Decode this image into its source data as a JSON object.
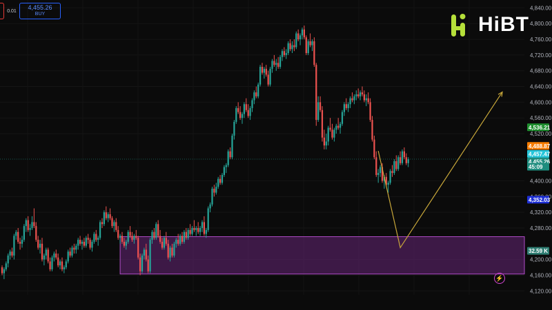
{
  "trade_panel": {
    "spread": "0.01",
    "buy_price": "4,455.26",
    "buy_label": "BUY"
  },
  "logo": {
    "text": "HiBT"
  },
  "colors": {
    "up": "#26a69a",
    "down": "#ef5350",
    "zone": "#7b2a8f",
    "trend": "#c9a83a"
  },
  "chart_data": {
    "type": "candlestick",
    "y_axis": {
      "min": 4110,
      "max": 4860,
      "ticks": [
        "4,840.00",
        "4,800.00",
        "4,760.00",
        "4,720.00",
        "4,680.00",
        "4,640.00",
        "4,600.00",
        "4,560.00",
        "4,520.00",
        "4,400.00",
        "4,360.00",
        "4,320.00",
        "4,280.00",
        "4,200.00",
        "4,160.00",
        "4,120.00"
      ]
    },
    "price_tags": [
      {
        "label": "4,536.21",
        "value": 4536.21,
        "color": "#1f8f2f"
      },
      {
        "label": "4,488.87",
        "value": 4488.87,
        "color": "#f57c00"
      },
      {
        "label": "4,457.47",
        "value": 4468.5,
        "color": "#26c6da"
      },
      {
        "label": "4,455.26",
        "value": 4449.0,
        "color": "#1e8c7e"
      },
      {
        "label": "45:09",
        "value": 4436.0,
        "color": "#1e8c7e"
      },
      {
        "label": "4,352.03",
        "value": 4352.03,
        "color": "#1e30d6"
      },
      {
        "label": "32.59 K",
        "value": 4222,
        "color": "#2e7d72"
      }
    ],
    "demand_zone": {
      "top": 4258,
      "bottom": 4163,
      "start_index": 59
    },
    "trend_path": [
      {
        "index": 188,
        "price": 4476
      },
      {
        "index": 199,
        "price": 4230
      },
      {
        "index": 250,
        "price": 4626
      }
    ],
    "candles": [
      [
        4180,
        4185,
        4160,
        4165
      ],
      [
        4165,
        4180,
        4150,
        4175
      ],
      [
        4175,
        4195,
        4170,
        4190
      ],
      [
        4190,
        4215,
        4180,
        4210
      ],
      [
        4210,
        4225,
        4200,
        4220
      ],
      [
        4220,
        4230,
        4205,
        4210
      ],
      [
        4210,
        4265,
        4200,
        4260
      ],
      [
        4260,
        4275,
        4250,
        4270
      ],
      [
        4270,
        4280,
        4240,
        4245
      ],
      [
        4245,
        4255,
        4225,
        4240
      ],
      [
        4240,
        4260,
        4230,
        4250
      ],
      [
        4250,
        4290,
        4245,
        4285
      ],
      [
        4285,
        4305,
        4270,
        4300
      ],
      [
        4300,
        4310,
        4270,
        4275
      ],
      [
        4275,
        4290,
        4260,
        4280
      ],
      [
        4280,
        4310,
        4275,
        4295
      ],
      [
        4295,
        4330,
        4280,
        4285
      ],
      [
        4285,
        4295,
        4245,
        4250
      ],
      [
        4250,
        4260,
        4225,
        4230
      ],
      [
        4230,
        4250,
        4215,
        4240
      ],
      [
        4240,
        4255,
        4195,
        4200
      ],
      [
        4200,
        4215,
        4185,
        4210
      ],
      [
        4210,
        4230,
        4200,
        4225
      ],
      [
        4225,
        4230,
        4190,
        4195
      ],
      [
        4195,
        4205,
        4170,
        4175
      ],
      [
        4175,
        4210,
        4170,
        4205
      ],
      [
        4205,
        4220,
        4195,
        4215
      ],
      [
        4215,
        4225,
        4200,
        4205
      ],
      [
        4205,
        4215,
        4180,
        4185
      ],
      [
        4185,
        4200,
        4175,
        4195
      ],
      [
        4195,
        4205,
        4170,
        4175
      ],
      [
        4175,
        4185,
        4165,
        4180
      ],
      [
        4180,
        4200,
        4175,
        4195
      ],
      [
        4195,
        4225,
        4190,
        4220
      ],
      [
        4220,
        4230,
        4205,
        4210
      ],
      [
        4210,
        4235,
        4205,
        4230
      ],
      [
        4230,
        4240,
        4215,
        4225
      ],
      [
        4225,
        4240,
        4215,
        4235
      ],
      [
        4235,
        4255,
        4225,
        4250
      ],
      [
        4250,
        4260,
        4235,
        4240
      ],
      [
        4240,
        4250,
        4225,
        4245
      ],
      [
        4245,
        4255,
        4230,
        4235
      ],
      [
        4235,
        4260,
        4230,
        4255
      ],
      [
        4255,
        4265,
        4240,
        4250
      ],
      [
        4250,
        4255,
        4225,
        4230
      ],
      [
        4230,
        4250,
        4220,
        4245
      ],
      [
        4245,
        4270,
        4240,
        4265
      ],
      [
        4265,
        4275,
        4245,
        4250
      ],
      [
        4250,
        4260,
        4235,
        4255
      ],
      [
        4255,
        4300,
        4250,
        4295
      ],
      [
        4295,
        4305,
        4280,
        4290
      ],
      [
        4290,
        4325,
        4285,
        4320
      ],
      [
        4320,
        4335,
        4300,
        4305
      ],
      [
        4305,
        4320,
        4295,
        4315
      ],
      [
        4315,
        4330,
        4300,
        4305
      ],
      [
        4305,
        4310,
        4280,
        4285
      ],
      [
        4285,
        4300,
        4270,
        4295
      ],
      [
        4295,
        4305,
        4270,
        4275
      ],
      [
        4275,
        4285,
        4250,
        4255
      ],
      [
        4255,
        4265,
        4240,
        4260
      ],
      [
        4260,
        4270,
        4240,
        4245
      ],
      [
        4245,
        4255,
        4230,
        4235
      ],
      [
        4235,
        4250,
        4225,
        4245
      ],
      [
        4245,
        4275,
        4240,
        4270
      ],
      [
        4270,
        4285,
        4255,
        4260
      ],
      [
        4260,
        4270,
        4245,
        4250
      ],
      [
        4250,
        4265,
        4240,
        4260
      ],
      [
        4260,
        4275,
        4250,
        4255
      ],
      [
        4255,
        4260,
        4200,
        4205
      ],
      [
        4205,
        4215,
        4160,
        4170
      ],
      [
        4170,
        4215,
        4165,
        4210
      ],
      [
        4210,
        4230,
        4200,
        4225
      ],
      [
        4225,
        4240,
        4195,
        4200
      ],
      [
        4200,
        4210,
        4165,
        4170
      ],
      [
        4170,
        4255,
        4165,
        4250
      ],
      [
        4250,
        4275,
        4240,
        4270
      ],
      [
        4270,
        4280,
        4250,
        4255
      ],
      [
        4255,
        4295,
        4250,
        4290
      ],
      [
        4290,
        4300,
        4255,
        4260
      ],
      [
        4260,
        4275,
        4240,
        4245
      ],
      [
        4245,
        4255,
        4225,
        4230
      ],
      [
        4230,
        4260,
        4225,
        4255
      ],
      [
        4255,
        4270,
        4235,
        4240
      ],
      [
        4240,
        4250,
        4200,
        4205
      ],
      [
        4205,
        4235,
        4195,
        4230
      ],
      [
        4230,
        4240,
        4205,
        4210
      ],
      [
        4210,
        4245,
        4205,
        4240
      ],
      [
        4240,
        4255,
        4230,
        4250
      ],
      [
        4250,
        4265,
        4235,
        4240
      ],
      [
        4240,
        4265,
        4235,
        4260
      ],
      [
        4260,
        4270,
        4240,
        4245
      ],
      [
        4245,
        4275,
        4240,
        4270
      ],
      [
        4270,
        4280,
        4250,
        4255
      ],
      [
        4255,
        4280,
        4250,
        4275
      ],
      [
        4275,
        4290,
        4260,
        4265
      ],
      [
        4265,
        4285,
        4260,
        4280
      ],
      [
        4280,
        4300,
        4270,
        4275
      ],
      [
        4275,
        4285,
        4260,
        4280
      ],
      [
        4280,
        4295,
        4265,
        4270
      ],
      [
        4270,
        4285,
        4260,
        4280
      ],
      [
        4280,
        4300,
        4270,
        4295
      ],
      [
        4295,
        4310,
        4260,
        4265
      ],
      [
        4265,
        4280,
        4255,
        4275
      ],
      [
        4275,
        4335,
        4270,
        4330
      ],
      [
        4330,
        4345,
        4320,
        4340
      ],
      [
        4340,
        4385,
        4335,
        4380
      ],
      [
        4380,
        4390,
        4360,
        4370
      ],
      [
        4370,
        4395,
        4365,
        4385
      ],
      [
        4385,
        4410,
        4380,
        4405
      ],
      [
        4405,
        4415,
        4390,
        4395
      ],
      [
        4395,
        4420,
        4390,
        4415
      ],
      [
        4415,
        4440,
        4410,
        4435
      ],
      [
        4435,
        4445,
        4420,
        4440
      ],
      [
        4440,
        4480,
        4435,
        4475
      ],
      [
        4475,
        4485,
        4455,
        4460
      ],
      [
        4460,
        4520,
        4455,
        4515
      ],
      [
        4515,
        4555,
        4505,
        4550
      ],
      [
        4550,
        4590,
        4545,
        4585
      ],
      [
        4585,
        4600,
        4570,
        4575
      ],
      [
        4575,
        4590,
        4555,
        4560
      ],
      [
        4560,
        4575,
        4545,
        4570
      ],
      [
        4570,
        4600,
        4560,
        4595
      ],
      [
        4595,
        4610,
        4575,
        4580
      ],
      [
        4580,
        4595,
        4560,
        4565
      ],
      [
        4565,
        4590,
        4555,
        4585
      ],
      [
        4585,
        4610,
        4575,
        4605
      ],
      [
        4605,
        4630,
        4595,
        4625
      ],
      [
        4625,
        4640,
        4610,
        4615
      ],
      [
        4615,
        4650,
        4610,
        4645
      ],
      [
        4645,
        4695,
        4640,
        4690
      ],
      [
        4690,
        4700,
        4670,
        4675
      ],
      [
        4675,
        4690,
        4660,
        4685
      ],
      [
        4685,
        4695,
        4665,
        4670
      ],
      [
        4670,
        4680,
        4640,
        4645
      ],
      [
        4645,
        4690,
        4640,
        4685
      ],
      [
        4685,
        4710,
        4675,
        4705
      ],
      [
        4705,
        4720,
        4690,
        4695
      ],
      [
        4695,
        4710,
        4680,
        4700
      ],
      [
        4700,
        4715,
        4685,
        4690
      ],
      [
        4690,
        4720,
        4685,
        4715
      ],
      [
        4715,
        4735,
        4705,
        4730
      ],
      [
        4730,
        4740,
        4715,
        4720
      ],
      [
        4720,
        4735,
        4710,
        4725
      ],
      [
        4725,
        4755,
        4720,
        4750
      ],
      [
        4750,
        4760,
        4730,
        4735
      ],
      [
        4735,
        4755,
        4725,
        4745
      ],
      [
        4745,
        4760,
        4730,
        4740
      ],
      [
        4740,
        4780,
        4735,
        4775
      ],
      [
        4775,
        4785,
        4755,
        4760
      ],
      [
        4760,
        4775,
        4745,
        4770
      ],
      [
        4770,
        4790,
        4760,
        4785
      ],
      [
        4785,
        4795,
        4760,
        4765
      ],
      [
        4765,
        4770,
        4720,
        4725
      ],
      [
        4725,
        4760,
        4720,
        4755
      ],
      [
        4755,
        4775,
        4740,
        4745
      ],
      [
        4745,
        4760,
        4730,
        4755
      ],
      [
        4755,
        4765,
        4690,
        4695
      ],
      [
        4695,
        4700,
        4540,
        4555
      ],
      [
        4555,
        4615,
        4550,
        4600
      ],
      [
        4600,
        4615,
        4575,
        4580
      ],
      [
        4580,
        4590,
        4500,
        4510
      ],
      [
        4510,
        4530,
        4480,
        4490
      ],
      [
        4490,
        4520,
        4480,
        4500
      ],
      [
        4500,
        4540,
        4490,
        4535
      ],
      [
        4535,
        4560,
        4525,
        4530
      ],
      [
        4530,
        4545,
        4505,
        4510
      ],
      [
        4510,
        4535,
        4500,
        4530
      ],
      [
        4530,
        4545,
        4520,
        4540
      ],
      [
        4540,
        4560,
        4530,
        4535
      ],
      [
        4535,
        4550,
        4520,
        4545
      ],
      [
        4545,
        4580,
        4540,
        4575
      ],
      [
        4575,
        4600,
        4565,
        4595
      ],
      [
        4595,
        4610,
        4580,
        4585
      ],
      [
        4585,
        4600,
        4575,
        4595
      ],
      [
        4595,
        4615,
        4585,
        4610
      ],
      [
        4610,
        4625,
        4600,
        4605
      ],
      [
        4605,
        4620,
        4595,
        4615
      ],
      [
        4615,
        4630,
        4605,
        4620
      ],
      [
        4620,
        4635,
        4610,
        4615
      ],
      [
        4615,
        4630,
        4605,
        4625
      ],
      [
        4625,
        4640,
        4615,
        4620
      ],
      [
        4620,
        4630,
        4600,
        4605
      ],
      [
        4605,
        4620,
        4590,
        4610
      ],
      [
        4610,
        4625,
        4595,
        4600
      ],
      [
        4600,
        4610,
        4550,
        4555
      ],
      [
        4555,
        4565,
        4500,
        4505
      ],
      [
        4505,
        4515,
        4455,
        4460
      ],
      [
        4460,
        4475,
        4410,
        4415
      ],
      [
        4415,
        4430,
        4395,
        4420
      ],
      [
        4420,
        4440,
        4410,
        4435
      ],
      [
        4435,
        4445,
        4395,
        4400
      ],
      [
        4400,
        4415,
        4380,
        4410
      ],
      [
        4410,
        4420,
        4385,
        4390
      ],
      [
        4390,
        4400,
        4370,
        4395
      ],
      [
        4395,
        4430,
        4390,
        4425
      ],
      [
        4425,
        4440,
        4410,
        4420
      ],
      [
        4420,
        4455,
        4415,
        4450
      ],
      [
        4450,
        4465,
        4425,
        4430
      ],
      [
        4430,
        4465,
        4425,
        4460
      ],
      [
        4460,
        4475,
        4440,
        4445
      ],
      [
        4445,
        4480,
        4440,
        4475
      ],
      [
        4475,
        4485,
        4455,
        4460
      ],
      [
        4460,
        4470,
        4440,
        4445
      ],
      [
        4445,
        4460,
        4435,
        4455
      ]
    ]
  }
}
